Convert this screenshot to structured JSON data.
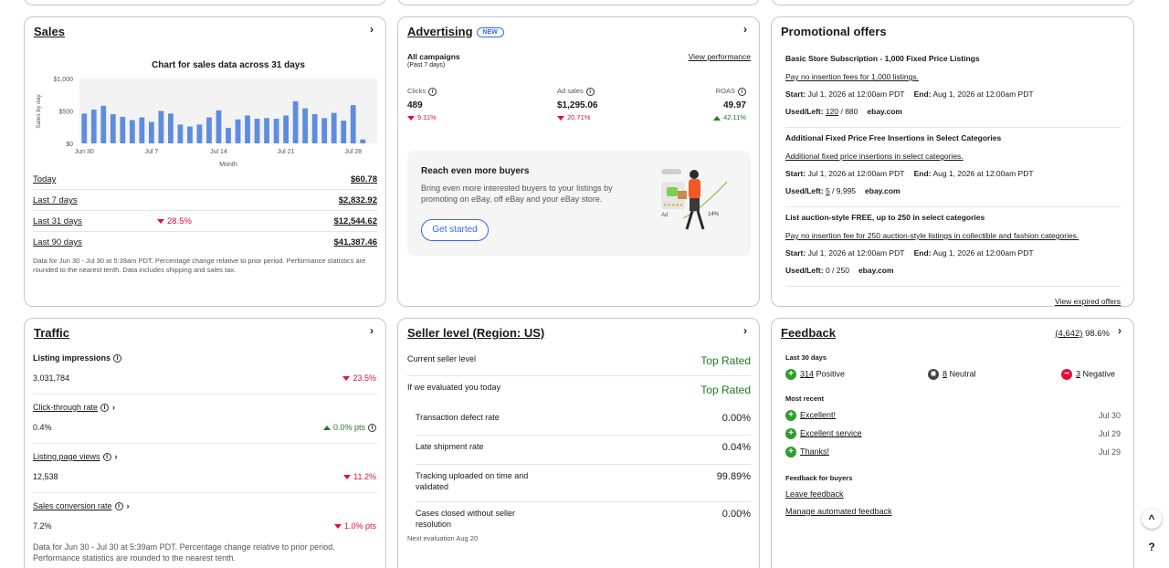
{
  "sales": {
    "title": "Sales",
    "chart_data": {
      "type": "bar",
      "title": "Chart for sales data across 31 days",
      "xlabel": "Month",
      "ylabel": "Sales by day",
      "yticks": [
        "$1,000",
        "$500",
        "$0"
      ],
      "ylim": [
        0,
        1000
      ],
      "xticks": [
        "Jun 30",
        "Jul 7",
        "Jul 14",
        "Jul 21",
        "Jul 28"
      ],
      "categories": [
        "Jun 30",
        "Jul 1",
        "Jul 2",
        "Jul 3",
        "Jul 4",
        "Jul 5",
        "Jul 6",
        "Jul 7",
        "Jul 8",
        "Jul 9",
        "Jul 10",
        "Jul 11",
        "Jul 12",
        "Jul 13",
        "Jul 14",
        "Jul 15",
        "Jul 16",
        "Jul 17",
        "Jul 18",
        "Jul 19",
        "Jul 20",
        "Jul 21",
        "Jul 22",
        "Jul 23",
        "Jul 24",
        "Jul 25",
        "Jul 26",
        "Jul 27",
        "Jul 28",
        "Jul 29",
        "Jul 30"
      ],
      "values": [
        460,
        520,
        580,
        450,
        410,
        360,
        400,
        330,
        500,
        460,
        290,
        260,
        290,
        400,
        510,
        240,
        370,
        430,
        380,
        390,
        380,
        430,
        650,
        540,
        450,
        390,
        470,
        350,
        590,
        60,
        0
      ],
      "bar_color": "#5e8ddf",
      "grid_color": "#e5e5e5"
    },
    "rows": [
      {
        "label": "Today",
        "change": "",
        "value": "$60.78"
      },
      {
        "label": "Last 7 days",
        "change": "",
        "value": "$2,832.92"
      },
      {
        "label": "Last 31 days",
        "change": "28.5%",
        "value": "$12,544.62"
      },
      {
        "label": "Last 90 days",
        "change": "",
        "value": "$41,387.46"
      }
    ],
    "note": "Data for Jun 30 - Jul 30 at 5:39am PDT. Percentage change relative to prior period. Performance statistics are rounded to the nearest tenth. Data includes shipping and sales tax."
  },
  "advertising": {
    "title": "Advertising",
    "badge": "NEW",
    "campaigns_label": "All campaigns",
    "period": "(Past 7 days)",
    "view_performance": "View performance",
    "metrics": [
      {
        "label": "Clicks",
        "value": "489",
        "change": "9.11%",
        "direction": "down"
      },
      {
        "label": "Ad sales",
        "value": "$1,295.06",
        "change": "20.71%",
        "direction": "down"
      },
      {
        "label": "ROAS",
        "value": "49.97",
        "change": "42.11%",
        "direction": "up"
      }
    ],
    "promo": {
      "heading": "Reach even more buyers",
      "body": "Bring even more interested buyers to your listings by promoting on eBay, off eBay and your eBay store.",
      "button": "Get started",
      "ad_label": "Ad",
      "pct_label": "14%"
    }
  },
  "promotional": {
    "title": "Promotional offers",
    "offers": [
      {
        "title": "Basic Store Subscription - 1,000 Fixed Price Listings",
        "link": "Pay no insertion fees for 1,000 listings.",
        "start_label": "Start:",
        "start": "Jul 1, 2026 at 12:00am PDT",
        "end_label": "End:",
        "end": "Aug 1, 2026 at 12:00am PDT",
        "used_label": "Used/Left:",
        "used": "120",
        "left": " / 880",
        "source": "ebay.com"
      },
      {
        "title": "Additional Fixed Price Free Insertions in Select Categories",
        "link": "Additional fixed price insertions in select categories.",
        "start_label": "Start:",
        "start": "Jul 1, 2026 at 12:00am PDT",
        "end_label": "End:",
        "end": "Aug 1, 2026 at 12:00am PDT",
        "used_label": "Used/Left:",
        "used": "5",
        "left": " / 9,995",
        "source": "ebay.com"
      },
      {
        "title": "List auction-style FREE, up to 250 in select categories",
        "link": "Pay no insertion fee for 250 auction-style listings in collectible and fashion categories.",
        "start_label": "Start:",
        "start": "Jul 1, 2026 at 12:00am PDT",
        "end_label": "End:",
        "end": "Aug 1, 2026 at 12:00am PDT",
        "used_label": "Used/Left:",
        "used": "0",
        "left": " / 250",
        "source": "ebay.com"
      }
    ],
    "view_expired": "View expired offers"
  },
  "traffic": {
    "title": "Traffic",
    "metrics": [
      {
        "label": "Listing impressions",
        "value": "3,031,784",
        "change": "23.5%",
        "direction": "down"
      },
      {
        "label": "Click-through rate",
        "value": "0.4%",
        "change": "0.0% pts",
        "direction": "up"
      },
      {
        "label": "Listing page views",
        "value": "12,538",
        "change": "11.2%",
        "direction": "down"
      },
      {
        "label": "Sales conversion rate",
        "value": "7.2%",
        "change": "1.0% pts",
        "direction": "down"
      }
    ],
    "note": "Data for Jun 30 - Jul 30 at 5:39am PDT. Percentage change relative to prior period. Performance statistics are rounded to the nearest tenth."
  },
  "seller": {
    "title": "Seller level (Region: US)",
    "current_label": "Current seller level",
    "current_value": "Top Rated",
    "eval_label": "If we evaluated you today",
    "eval_value": "Top Rated",
    "rows": [
      {
        "label": "Transaction defect rate",
        "value": "0.00%"
      },
      {
        "label": "Late shipment rate",
        "value": "0.04%"
      },
      {
        "label": "Tracking uploaded on time and validated",
        "value": "99.89%"
      },
      {
        "label": "Cases closed without seller resolution",
        "value": "0.00%"
      }
    ],
    "next_eval": "Next evaluation Aug 20"
  },
  "feedback": {
    "title": "Feedback",
    "count": "(4,642)",
    "score": "98.6%",
    "last30_label": "Last 30 days",
    "positive_count": "314",
    "positive_label": "Positive",
    "neutral_count": "8",
    "neutral_label": "Neutral",
    "negative_count": "3",
    "negative_label": "Negative",
    "recent_label": "Most recent",
    "recent": [
      {
        "text": "Excellent!",
        "date": "Jul 30"
      },
      {
        "text": "Excellent service",
        "date": "Jul 29"
      },
      {
        "text": "Thanks!",
        "date": "Jul 29"
      }
    ],
    "buyers_label": "Feedback for buyers",
    "leave": "Leave feedback",
    "manage": "Manage automated feedback"
  },
  "float": {
    "up": "^",
    "help": "?"
  },
  "colors": {
    "positive": "#2e9e2e",
    "neutral": "#444444",
    "negative": "#e0103a",
    "link": "#3665f3"
  }
}
